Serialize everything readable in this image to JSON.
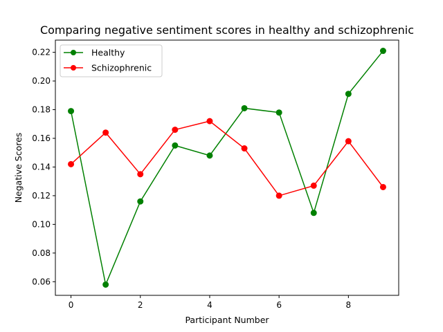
{
  "chart_data": {
    "type": "line",
    "title": "Comparing negative sentiment scores in healthy and schizophrenic",
    "xlabel": "Participant Number",
    "ylabel": "Negative Scores",
    "x": [
      0,
      1,
      2,
      3,
      4,
      5,
      6,
      7,
      8,
      9
    ],
    "xlim": [
      -0.45,
      9.45
    ],
    "ylim": [
      0.0505,
      0.2285
    ],
    "xticks": [
      0,
      2,
      4,
      6,
      8
    ],
    "yticks": [
      0.06,
      0.08,
      0.1,
      0.12,
      0.14,
      0.16,
      0.18,
      0.2,
      0.22
    ],
    "xtick_labels": [
      "0",
      "2",
      "4",
      "6",
      "8"
    ],
    "ytick_labels": [
      "0.06",
      "0.08",
      "0.10",
      "0.12",
      "0.14",
      "0.16",
      "0.18",
      "0.20",
      "0.22"
    ],
    "grid": false,
    "legend_position": "top-left",
    "series": [
      {
        "name": "Healthy",
        "color": "#008000",
        "marker": "circle",
        "values": [
          0.179,
          0.058,
          0.116,
          0.155,
          0.148,
          0.181,
          0.178,
          0.108,
          0.191,
          0.221
        ]
      },
      {
        "name": "Schizophrenic",
        "color": "#ff0000",
        "marker": "circle",
        "values": [
          0.142,
          0.164,
          0.135,
          0.166,
          0.172,
          0.153,
          0.12,
          0.127,
          0.158,
          0.126
        ]
      }
    ]
  }
}
